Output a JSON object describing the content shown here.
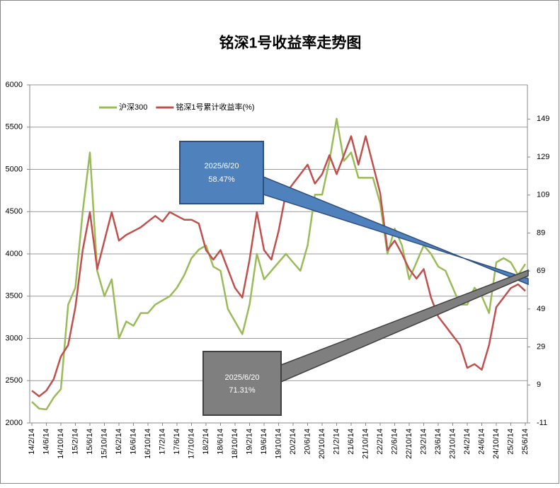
{
  "chart_data": {
    "type": "line",
    "title": "铭深1号收益率走势图",
    "categories": [
      "14/2/14",
      null,
      "14/6/14",
      null,
      "14/10/14",
      null,
      "15/2/14",
      null,
      "15/6/14",
      null,
      "15/10/14",
      null,
      "16/2/14",
      null,
      "16/6/14",
      null,
      "16/10/14",
      null,
      "17/2/14",
      null,
      "17/6/14",
      null,
      "17/10/14",
      null,
      "18/2/14",
      null,
      "18/6/14",
      null,
      "18/10/14",
      null,
      "19/2/14",
      null,
      "19/6/14",
      null,
      "19/10/14",
      null,
      "20/2/14",
      null,
      "20/6/14",
      null,
      "20/10/14",
      null,
      "21/2/14",
      null,
      "21/6/14",
      null,
      "21/10/14",
      null,
      "22/2/14",
      null,
      "22/6/14",
      null,
      "22/10/14",
      null,
      "23/2/14",
      null,
      "23/6/14",
      null,
      "23/10/14",
      null,
      "24/2/14",
      null,
      "24/6/14",
      null,
      "24/10/14",
      null,
      "25/2/14",
      null,
      "25/6/14"
    ],
    "series": [
      {
        "name": "沪深300",
        "color": "#9bbb59",
        "axis": "y",
        "values": [
          2250,
          2170,
          2160,
          2300,
          2400,
          3400,
          3600,
          4500,
          5200,
          3800,
          3500,
          3700,
          3000,
          3200,
          3150,
          3300,
          3300,
          3400,
          3450,
          3500,
          3600,
          3750,
          3950,
          4050,
          4100,
          3850,
          3800,
          3350,
          3200,
          3050,
          3400,
          4000,
          3700,
          3800,
          3900,
          4000,
          3900,
          3800,
          4100,
          4700,
          4700,
          5100,
          5600,
          5100,
          5200,
          4900,
          4900,
          4900,
          4600,
          4000,
          4300,
          4100,
          3700,
          3900,
          4100,
          4000,
          3850,
          3800,
          3600,
          3400,
          3400,
          3600,
          3500,
          3300,
          3900,
          3950,
          3900,
          3750,
          3880
        ]
      },
      {
        "name": "铭深1号累计收益率(%)",
        "color": "#c0504d",
        "axis": "y2",
        "values": [
          6,
          3,
          6,
          12,
          24,
          30,
          50,
          80,
          100,
          70,
          85,
          100,
          85,
          88,
          90,
          92,
          95,
          98,
          95,
          100,
          98,
          96,
          96,
          94,
          80,
          75,
          80,
          70,
          60,
          55,
          75,
          100,
          80,
          75,
          90,
          110,
          115,
          120,
          125,
          115,
          120,
          130,
          120,
          130,
          140,
          125,
          140,
          125,
          110,
          80,
          85,
          78,
          70,
          65,
          70,
          55,
          45,
          40,
          35,
          30,
          18,
          20,
          17,
          30,
          50,
          55,
          60,
          62,
          58.47
        ]
      }
    ],
    "ylim": [
      2000,
      6000
    ],
    "yticks": [
      2000,
      2500,
      3000,
      3500,
      4000,
      4500,
      5000,
      5500,
      6000
    ],
    "y2lim": [
      -11,
      167
    ],
    "y2ticks": [
      -11,
      9,
      29,
      49,
      69,
      89,
      109,
      129,
      149
    ],
    "grid": true,
    "legend": "top-left",
    "annotations": [
      {
        "date": "2025/6/20",
        "value": "58.47%"
      },
      {
        "date": "2025/6/20",
        "value": "71.31%"
      }
    ]
  }
}
